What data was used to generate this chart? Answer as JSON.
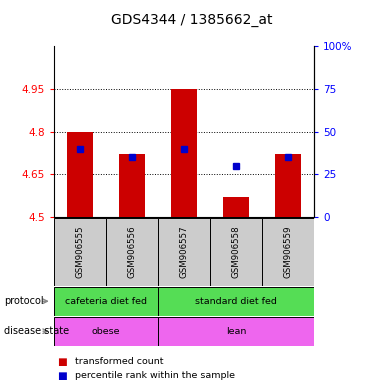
{
  "title": "GDS4344 / 1385662_at",
  "samples": [
    "GSM906555",
    "GSM906556",
    "GSM906557",
    "GSM906558",
    "GSM906559"
  ],
  "bar_values": [
    4.8,
    4.72,
    4.95,
    4.57,
    4.72
  ],
  "percentile_values": [
    40,
    35,
    40,
    30,
    35
  ],
  "y_min": 4.5,
  "y_max": 5.1,
  "y_ticks": [
    4.5,
    4.65,
    4.8,
    4.95
  ],
  "y_tick_labels": [
    "4.5",
    "4.65",
    "4.8",
    "4.95"
  ],
  "right_y_ticks": [
    0,
    25,
    50,
    75,
    100
  ],
  "right_y_tick_labels": [
    "0",
    "25",
    "50",
    "75",
    "100%"
  ],
  "bar_color": "#cc0000",
  "dot_color": "#0000cc",
  "bar_width": 0.5,
  "protocol_labels": [
    "cafeteria diet fed",
    "standard diet fed"
  ],
  "protocol_color": "#55dd55",
  "disease_labels": [
    "obese",
    "lean"
  ],
  "disease_color": "#ee66ee",
  "label_area_color": "#cccccc",
  "legend_red_label": "transformed count",
  "legend_blue_label": "percentile rank within the sample",
  "title_fontsize": 10,
  "tick_fontsize": 7.5,
  "annotation_fontsize": 7.5
}
